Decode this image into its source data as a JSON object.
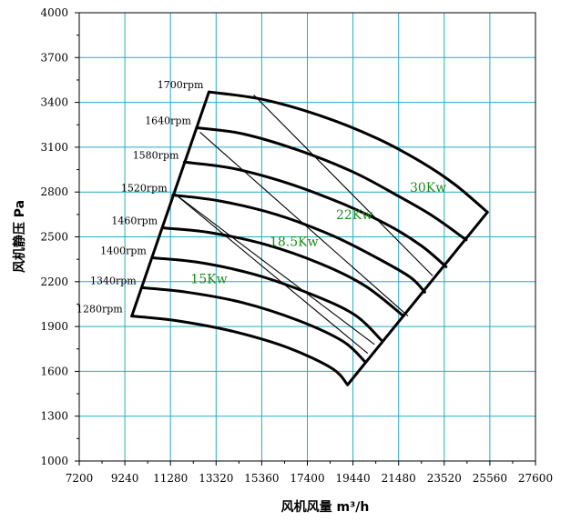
{
  "chart_data": {
    "type": "line",
    "xlabel": "风机风量  m³/h",
    "ylabel": "风机静压  Pa",
    "xlim": [
      7200,
      27600
    ],
    "ylim": [
      1000,
      4000
    ],
    "x_ticks": [
      "7200",
      "9240",
      "11280",
      "13320",
      "15360",
      "17400",
      "19440",
      "21480",
      "23520",
      "25560",
      "27600"
    ],
    "y_ticks": [
      "1000",
      "1300",
      "1600",
      "1900",
      "2200",
      "2500",
      "2800",
      "3100",
      "3400",
      "3700",
      "4000"
    ],
    "grid": true,
    "grid_color": "#29a9c9",
    "series": [
      {
        "name": "1700rpm",
        "points": [
          [
            13000,
            3470
          ],
          [
            15400,
            3420
          ],
          [
            18000,
            3310
          ],
          [
            20500,
            3160
          ],
          [
            22500,
            3000
          ],
          [
            24000,
            2850
          ],
          [
            25450,
            2665
          ]
        ]
      },
      {
        "name": "1640rpm",
        "points": [
          [
            12450,
            3230
          ],
          [
            14500,
            3190
          ],
          [
            17000,
            3080
          ],
          [
            19500,
            2930
          ],
          [
            21500,
            2770
          ],
          [
            23000,
            2640
          ],
          [
            24500,
            2480
          ]
        ]
      },
      {
        "name": "1580rpm",
        "points": [
          [
            11900,
            3000
          ],
          [
            14000,
            2960
          ],
          [
            16500,
            2860
          ],
          [
            19000,
            2720
          ],
          [
            21000,
            2580
          ],
          [
            22500,
            2440
          ],
          [
            23600,
            2300
          ]
        ]
      },
      {
        "name": "1520rpm",
        "points": [
          [
            11380,
            2780
          ],
          [
            13500,
            2740
          ],
          [
            16000,
            2650
          ],
          [
            18500,
            2510
          ],
          [
            20500,
            2360
          ],
          [
            22000,
            2230
          ],
          [
            22650,
            2130
          ]
        ]
      },
      {
        "name": "1460rpm",
        "points": [
          [
            10950,
            2560
          ],
          [
            13000,
            2530
          ],
          [
            15500,
            2450
          ],
          [
            18000,
            2320
          ],
          [
            20000,
            2170
          ],
          [
            21700,
            1970
          ]
        ]
      },
      {
        "name": "1400rpm",
        "points": [
          [
            10450,
            2360
          ],
          [
            12500,
            2330
          ],
          [
            15000,
            2250
          ],
          [
            17500,
            2120
          ],
          [
            19500,
            1980
          ],
          [
            20700,
            1810
          ]
        ]
      },
      {
        "name": "1340rpm",
        "points": [
          [
            10000,
            2160
          ],
          [
            12000,
            2130
          ],
          [
            14500,
            2060
          ],
          [
            17000,
            1940
          ],
          [
            19000,
            1800
          ],
          [
            20000,
            1660
          ]
        ]
      },
      {
        "name": "1280rpm",
        "points": [
          [
            9550,
            1970
          ],
          [
            11500,
            1940
          ],
          [
            14000,
            1870
          ],
          [
            16500,
            1760
          ],
          [
            18500,
            1620
          ],
          [
            19200,
            1510
          ]
        ]
      }
    ],
    "power_lines": [
      {
        "points": [
          [
            15000,
            3450
          ],
          [
            23000,
            2240
          ]
        ]
      },
      {
        "points": [
          [
            12600,
            3200
          ],
          [
            21900,
            1970
          ]
        ]
      },
      {
        "points": [
          [
            11450,
            2790
          ],
          [
            20400,
            1780
          ]
        ]
      },
      {
        "points": [
          [
            11450,
            2790
          ],
          [
            20100,
            1720
          ]
        ]
      }
    ],
    "envelope": {
      "left": [
        [
          13000,
          3470
        ],
        [
          9550,
          1970
        ]
      ],
      "right": [
        [
          25450,
          2665
        ],
        [
          19200,
          1510
        ]
      ]
    },
    "rpm_labels": [
      "1700rpm",
      "1640rpm",
      "1580rpm",
      "1520rpm",
      "1460rpm",
      "1400rpm",
      "1340rpm",
      "1280rpm"
    ],
    "power_labels": [
      {
        "text": "30Kw",
        "x": 22800,
        "y": 2800
      },
      {
        "text": "22Kw",
        "x": 19500,
        "y": 2620
      },
      {
        "text": "18.5Kw",
        "x": 16800,
        "y": 2440
      },
      {
        "text": "15Kw",
        "x": 13000,
        "y": 2190
      }
    ]
  }
}
